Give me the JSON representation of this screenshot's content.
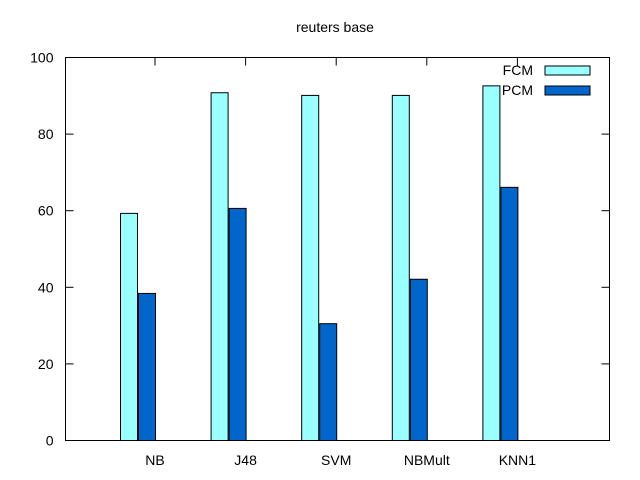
{
  "chart_data": {
    "type": "bar",
    "title": "reuters base",
    "xlabel": "",
    "ylabel": "",
    "categories": [
      "NB",
      "J48",
      "SVM",
      "NBMult",
      "KNN1"
    ],
    "series": [
      {
        "name": "FCM",
        "color": "#99ffff",
        "values": [
          59.3,
          90.8,
          90.1,
          90.1,
          92.6
        ]
      },
      {
        "name": "PCM",
        "color": "#0066cc",
        "values": [
          38.4,
          60.6,
          30.5,
          42.1,
          66.1
        ]
      }
    ],
    "ylim": [
      0,
      100
    ],
    "yticks": [
      0,
      20,
      40,
      60,
      80,
      100
    ],
    "grid": false,
    "legend_position": "top-right"
  }
}
